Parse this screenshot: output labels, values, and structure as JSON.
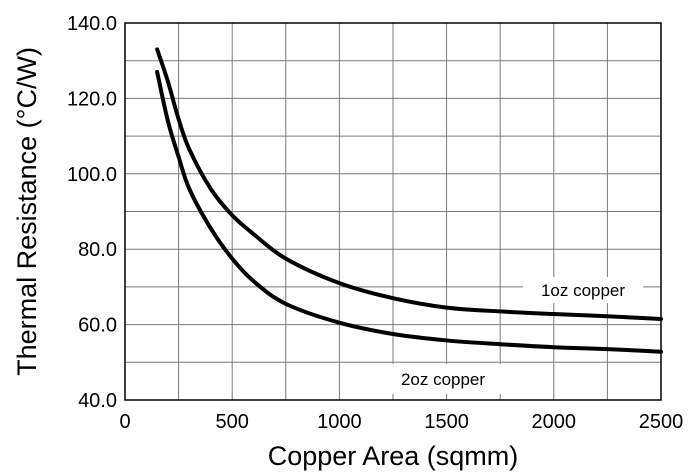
{
  "chart_data": {
    "type": "line",
    "xlabel": "Copper Area (sqmm)",
    "ylabel": "Thermal Resistance (°C/W)",
    "xlim": [
      0,
      2500
    ],
    "ylim": [
      40,
      140
    ],
    "x_ticks": [
      0,
      500,
      1000,
      1500,
      2000,
      2500
    ],
    "x_tick_labels": [
      "0",
      "500",
      "1000",
      "1500",
      "2000",
      "2500"
    ],
    "y_ticks": [
      40,
      60,
      80,
      100,
      120,
      140
    ],
    "y_tick_labels": [
      "40.0",
      "60.0",
      "80.0",
      "100.0",
      "120.0",
      "140.0"
    ],
    "x_minor_grid": [
      250,
      750,
      1250,
      1750,
      2250
    ],
    "y_minor_grid": [
      50,
      70,
      90,
      110,
      130
    ],
    "grid": true,
    "series": [
      {
        "name": "1oz copper",
        "x": [
          150,
          200,
          250,
          300,
          400,
          500,
          600,
          750,
          1000,
          1250,
          1500,
          1750,
          2000,
          2250,
          2500
        ],
        "y": [
          133,
          124.5,
          114.5,
          106.5,
          96,
          89,
          84,
          77.5,
          71,
          67,
          64.5,
          63.5,
          62.8,
          62.2,
          61.5
        ]
      },
      {
        "name": "2oz copper",
        "x": [
          150,
          200,
          250,
          300,
          400,
          500,
          600,
          750,
          1000,
          1250,
          1500,
          1750,
          2000,
          2250,
          2500
        ],
        "y": [
          127,
          114,
          104.5,
          96,
          85.5,
          77.5,
          71.5,
          65.5,
          60.5,
          57.5,
          55.8,
          54.8,
          54,
          53.5,
          52.8
        ]
      }
    ]
  }
}
